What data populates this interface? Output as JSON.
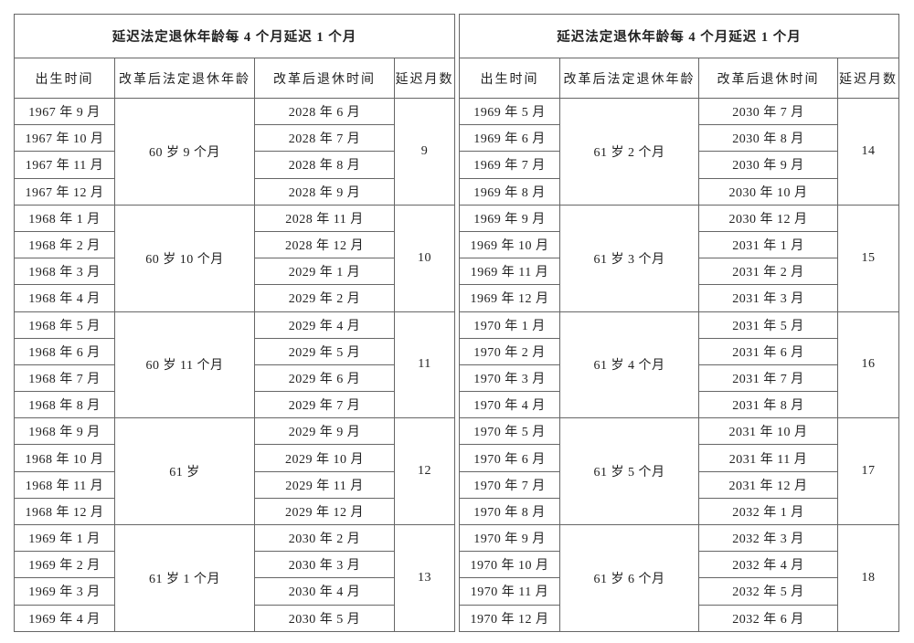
{
  "tables": [
    {
      "title": "延迟法定退休年龄每 4 个月延迟 1 个月",
      "headers": [
        "出生时间",
        "改革后法定退休年龄",
        "改革后退休时间",
        "延迟月数"
      ],
      "groups": [
        {
          "age": "60 岁 9 个月",
          "delay": 9,
          "rows": [
            [
              "1967 年 9 月",
              "2028 年 6 月"
            ],
            [
              "1967 年 10 月",
              "2028 年 7 月"
            ],
            [
              "1967 年 11 月",
              "2028 年 8 月"
            ],
            [
              "1967 年 12 月",
              "2028 年 9 月"
            ]
          ]
        },
        {
          "age": "60 岁 10 个月",
          "delay": 10,
          "rows": [
            [
              "1968 年 1 月",
              "2028 年 11 月"
            ],
            [
              "1968 年 2 月",
              "2028 年 12 月"
            ],
            [
              "1968 年 3 月",
              "2029 年 1 月"
            ],
            [
              "1968 年 4 月",
              "2029 年 2 月"
            ]
          ]
        },
        {
          "age": "60 岁 11 个月",
          "delay": 11,
          "rows": [
            [
              "1968 年 5 月",
              "2029 年 4 月"
            ],
            [
              "1968 年 6 月",
              "2029 年 5 月"
            ],
            [
              "1968 年 7 月",
              "2029 年 6 月"
            ],
            [
              "1968 年 8 月",
              "2029 年 7 月"
            ]
          ]
        },
        {
          "age": "61 岁",
          "delay": 12,
          "rows": [
            [
              "1968 年 9 月",
              "2029 年 9 月"
            ],
            [
              "1968 年 10 月",
              "2029 年 10 月"
            ],
            [
              "1968 年 11 月",
              "2029 年 11 月"
            ],
            [
              "1968 年 12 月",
              "2029 年 12 月"
            ]
          ]
        },
        {
          "age": "61 岁 1 个月",
          "delay": 13,
          "rows": [
            [
              "1969 年 1 月",
              "2030 年 2 月"
            ],
            [
              "1969 年 2 月",
              "2030 年 3 月"
            ],
            [
              "1969 年 3 月",
              "2030 年 4 月"
            ],
            [
              "1969 年 4 月",
              "2030 年 5 月"
            ]
          ]
        }
      ]
    },
    {
      "title": "延迟法定退休年龄每 4 个月延迟 1 个月",
      "headers": [
        "出生时间",
        "改革后法定退休年龄",
        "改革后退休时间",
        "延迟月数"
      ],
      "groups": [
        {
          "age": "61 岁 2 个月",
          "delay": 14,
          "rows": [
            [
              "1969 年 5 月",
              "2030 年 7 月"
            ],
            [
              "1969 年 6 月",
              "2030 年 8 月"
            ],
            [
              "1969 年 7 月",
              "2030 年 9 月"
            ],
            [
              "1969 年 8 月",
              "2030 年 10 月"
            ]
          ]
        },
        {
          "age": "61 岁 3 个月",
          "delay": 15,
          "rows": [
            [
              "1969 年 9 月",
              "2030 年 12 月"
            ],
            [
              "1969 年 10 月",
              "2031 年 1 月"
            ],
            [
              "1969 年 11 月",
              "2031 年 2 月"
            ],
            [
              "1969 年 12 月",
              "2031 年 3 月"
            ]
          ]
        },
        {
          "age": "61 岁 4 个月",
          "delay": 16,
          "rows": [
            [
              "1970 年 1 月",
              "2031 年 5 月"
            ],
            [
              "1970 年 2 月",
              "2031 年 6 月"
            ],
            [
              "1970 年 3 月",
              "2031 年 7 月"
            ],
            [
              "1970 年 4 月",
              "2031 年 8 月"
            ]
          ]
        },
        {
          "age": "61 岁 5 个月",
          "delay": 17,
          "rows": [
            [
              "1970 年 5 月",
              "2031 年 10 月"
            ],
            [
              "1970 年 6 月",
              "2031 年 11 月"
            ],
            [
              "1970 年 7 月",
              "2031 年 12 月"
            ],
            [
              "1970 年 8 月",
              "2032 年 1 月"
            ]
          ]
        },
        {
          "age": "61 岁 6 个月",
          "delay": 18,
          "rows": [
            [
              "1970 年 9 月",
              "2032 年 3 月"
            ],
            [
              "1970 年 10 月",
              "2032 年 4 月"
            ],
            [
              "1970 年 11 月",
              "2032 年 5 月"
            ],
            [
              "1970 年 12 月",
              "2032 年 6 月"
            ]
          ]
        }
      ]
    }
  ]
}
